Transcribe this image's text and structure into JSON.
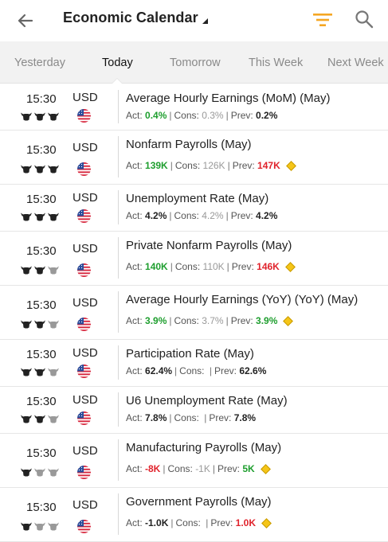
{
  "header": {
    "title": "Economic Calendar"
  },
  "tabs": [
    {
      "label": "Yesterday",
      "active": false
    },
    {
      "label": "Today",
      "active": true
    },
    {
      "label": "Tomorrow",
      "active": false
    },
    {
      "label": "This Week",
      "active": false
    },
    {
      "label": "Next Week",
      "active": false
    }
  ],
  "colors": {
    "accent": "#f5a623",
    "positive": "#1e9e2e",
    "negative": "#e0232c",
    "alert": "#f5c518"
  },
  "labels": {
    "act": "Act:",
    "cons": "Cons:",
    "prev": "Prev:"
  },
  "events": [
    {
      "time": "15:30",
      "currency": "USD",
      "importance": 3,
      "name": "Average Hourly Earnings (MoM) (May)",
      "actual": "0.4%",
      "actual_tone": "green",
      "consensus": "0.3%",
      "previous": "0.2%",
      "previous_tone": "dark",
      "alert": false
    },
    {
      "time": "15:30",
      "currency": "USD",
      "importance": 3,
      "name": "Nonfarm Payrolls (May)",
      "actual": "139K",
      "actual_tone": "green",
      "consensus": "126K",
      "previous": "147K",
      "previous_tone": "red",
      "alert": true
    },
    {
      "time": "15:30",
      "currency": "USD",
      "importance": 3,
      "name": "Unemployment Rate (May)",
      "actual": "4.2%",
      "actual_tone": "dark",
      "consensus": "4.2%",
      "previous": "4.2%",
      "previous_tone": "dark",
      "alert": false
    },
    {
      "time": "15:30",
      "currency": "USD",
      "importance": 2,
      "name": "Private Nonfarm Payrolls (May)",
      "actual": "140K",
      "actual_tone": "green",
      "consensus": "110K",
      "previous": "146K",
      "previous_tone": "red",
      "alert": true
    },
    {
      "time": "15:30",
      "currency": "USD",
      "importance": 2,
      "name": "Average Hourly Earnings (YoY) (YoY) (May)",
      "actual": "3.9%",
      "actual_tone": "green",
      "consensus": "3.7%",
      "previous": "3.9%",
      "previous_tone": "green",
      "alert": true
    },
    {
      "time": "15:30",
      "currency": "USD",
      "importance": 2,
      "name": "Participation Rate (May)",
      "actual": "62.4%",
      "actual_tone": "dark",
      "consensus": "",
      "previous": "62.6%",
      "previous_tone": "dark",
      "alert": false
    },
    {
      "time": "15:30",
      "currency": "USD",
      "importance": 2,
      "name": "U6 Unemployment Rate (May)",
      "actual": "7.8%",
      "actual_tone": "dark",
      "consensus": "",
      "previous": "7.8%",
      "previous_tone": "dark",
      "alert": false
    },
    {
      "time": "15:30",
      "currency": "USD",
      "importance": 1,
      "name": "Manufacturing Payrolls (May)",
      "actual": "-8K",
      "actual_tone": "red",
      "consensus": "-1K",
      "previous": "5K",
      "previous_tone": "green",
      "alert": true
    },
    {
      "time": "15:30",
      "currency": "USD",
      "importance": 1,
      "name": "Government Payrolls (May)",
      "actual": "-1.0K",
      "actual_tone": "dark",
      "consensus": "",
      "previous": "1.0K",
      "previous_tone": "red",
      "alert": true
    }
  ]
}
